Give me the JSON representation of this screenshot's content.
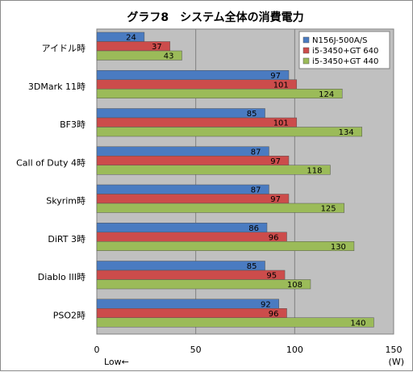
{
  "chart_data": {
    "type": "bar",
    "orientation": "horizontal",
    "title": "グラフ8　システム全体の消費電力",
    "categories": [
      "アイドル時",
      "3DMark 11時",
      "BF3時",
      "Call of Duty 4時",
      "Skyrim時",
      "DiRT 3時",
      "Diablo III時",
      "PSO2時"
    ],
    "series": [
      {
        "name": "N156J-500A/S",
        "color": "#4a7bc1",
        "values": [
          24,
          97,
          85,
          87,
          87,
          86,
          85,
          92
        ]
      },
      {
        "name": "i5-3450+GT 640",
        "color": "#cc4c4b",
        "values": [
          37,
          101,
          101,
          97,
          97,
          96,
          95,
          96
        ]
      },
      {
        "name": "i5-3450+GT 440",
        "color": "#9bbb59",
        "values": [
          43,
          124,
          134,
          118,
          125,
          130,
          108,
          140
        ]
      }
    ],
    "xlim": [
      0,
      150
    ],
    "xticks": [
      0,
      50,
      100,
      150
    ],
    "xlabel_left": "Low←",
    "unit": "(W)",
    "legend_position": "top-right",
    "grid": true
  }
}
